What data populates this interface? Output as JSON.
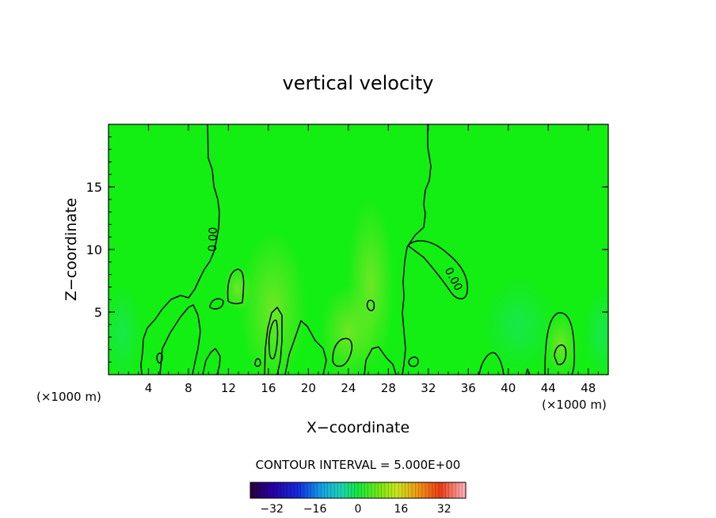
{
  "chart_data": {
    "type": "heatmap",
    "title": "vertical velocity",
    "xlabel": "X−coordinate",
    "ylabel": "Z−coordinate",
    "x_unit_left": "(×1000 m)",
    "x_unit_right": "(×1000 m)",
    "xlim": [
      0,
      50
    ],
    "ylim": [
      0,
      20
    ],
    "x_ticks": [
      4,
      8,
      12,
      16,
      20,
      24,
      28,
      32,
      36,
      40,
      44,
      48
    ],
    "y_ticks": [
      5,
      10,
      15
    ],
    "contour_labels": [
      {
        "text": "0.00",
        "x": 10.8,
        "z": 10.8
      },
      {
        "text": "0.00",
        "x": 34.2,
        "z": 7.5
      }
    ],
    "contour_interval_text": "CONTOUR INTERVAL = 5.000E+00",
    "colorbar": {
      "min": -40,
      "max": 40,
      "ticks": [
        -32,
        -16,
        0,
        16,
        32
      ],
      "tick_labels": [
        "−32",
        "−16",
        "0",
        "16",
        "32"
      ]
    },
    "colors": {
      "field_base": "#13ee13",
      "contour": "#000000"
    }
  }
}
